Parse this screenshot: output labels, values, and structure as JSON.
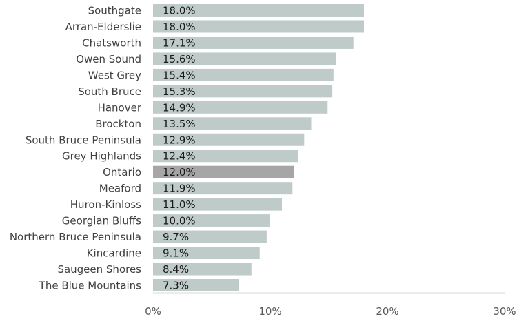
{
  "chart_data": {
    "type": "bar",
    "orientation": "horizontal",
    "categories": [
      "Southgate",
      "Arran-Elderslie",
      "Chatsworth",
      "Owen Sound",
      "West Grey",
      "South Bruce",
      "Hanover",
      "Brockton",
      "South Bruce Peninsula",
      "Grey Highlands",
      "Ontario",
      "Meaford",
      "Huron-Kinloss",
      "Georgian Bluffs",
      "Northern Bruce Peninsula",
      "Kincardine",
      "Saugeen Shores",
      "The Blue Mountains"
    ],
    "values": [
      18.0,
      18.0,
      17.1,
      15.6,
      15.4,
      15.3,
      14.9,
      13.5,
      12.9,
      12.4,
      12.0,
      11.9,
      11.0,
      10.0,
      9.7,
      9.1,
      8.4,
      7.3
    ],
    "value_labels": [
      "18.0%",
      "18.0%",
      "17.1%",
      "15.6%",
      "15.4%",
      "15.3%",
      "14.9%",
      "13.5%",
      "12.9%",
      "12.4%",
      "12.0%",
      "11.9%",
      "11.0%",
      "10.0%",
      "9.7%",
      "9.1%",
      "8.4%",
      "7.3%"
    ],
    "highlight_category": "Ontario",
    "xlim": [
      0,
      30
    ],
    "x_ticks": [
      0,
      10,
      20,
      30
    ],
    "x_tick_labels": [
      "0%",
      "10%",
      "20%",
      "30%"
    ],
    "grid": false,
    "legend": "none",
    "title": "",
    "xlabel": "",
    "ylabel": "",
    "colors": {
      "bar": "#bfcbc9",
      "highlight_bar": "#a6a6a6",
      "axis": "#d9d9d9"
    }
  }
}
